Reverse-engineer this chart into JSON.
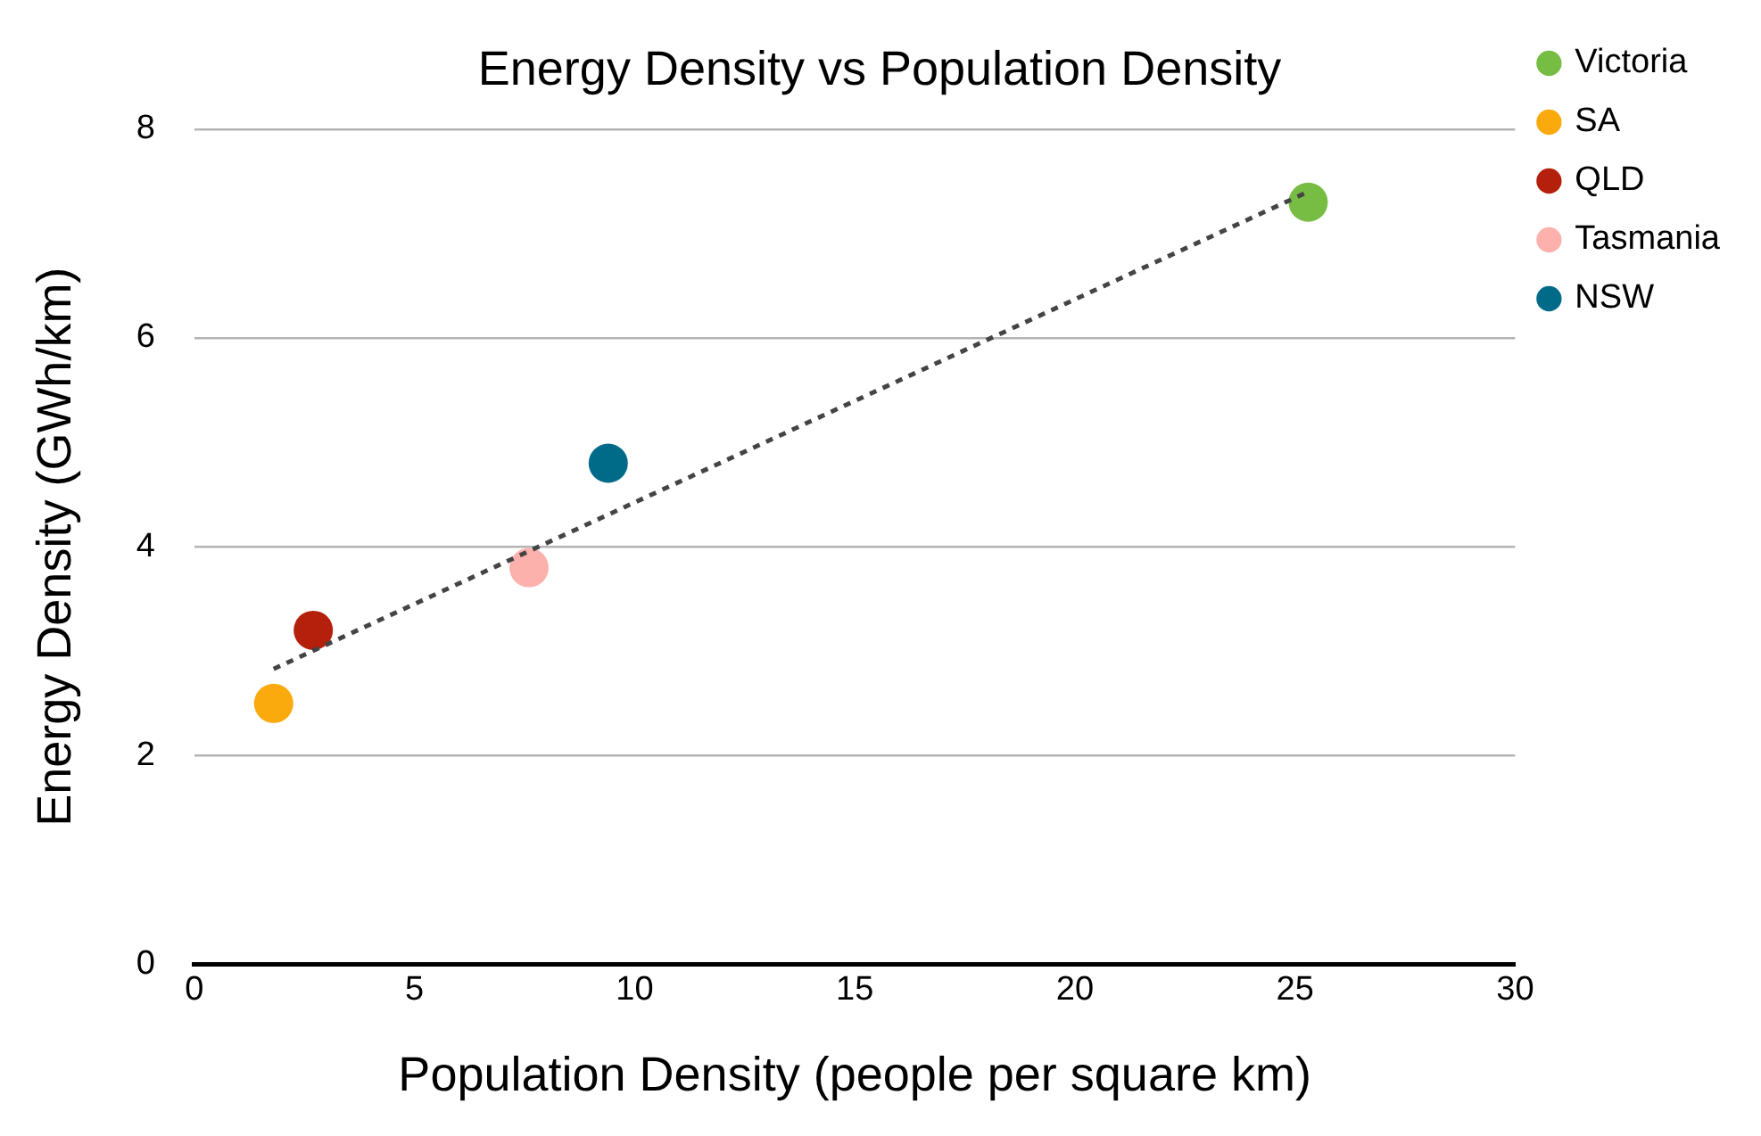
{
  "chart_data": {
    "type": "scatter",
    "title": "Energy Density vs Population Density",
    "xlabel": "Population Density (people per square km)",
    "ylabel": "Energy Density (GWh/km)",
    "xlim": [
      0,
      30
    ],
    "xticks": [
      0,
      5,
      10,
      15,
      20,
      25,
      30
    ],
    "ylim": [
      0,
      8
    ],
    "yticks": [
      0,
      2,
      4,
      6,
      8
    ],
    "grid": "y",
    "legend": "top right",
    "marker": "circle",
    "series": [
      {
        "name": "Victoria",
        "color": "#77bc43",
        "x": [
          25.3
        ],
        "values": [
          7.3
        ]
      },
      {
        "name": "SA",
        "color": "#fbaa0e",
        "x": [
          1.8
        ],
        "values": [
          2.5
        ]
      },
      {
        "name": "QLD",
        "color": "#b5200d",
        "x": [
          2.7
        ],
        "values": [
          3.2
        ]
      },
      {
        "name": "Tasmania",
        "color": "#fdb1ad",
        "x": [
          7.6
        ],
        "values": [
          3.8
        ]
      },
      {
        "name": "NSW",
        "color": "#006b89",
        "x": [
          9.4
        ],
        "values": [
          4.8
        ]
      },
      {
        "type": "line",
        "color": "#444444",
        "line_style": "dotted",
        "marker": "none",
        "x": [
          1.8,
          25.3
        ],
        "values": [
          2.83,
          7.4
        ]
      }
    ]
  }
}
